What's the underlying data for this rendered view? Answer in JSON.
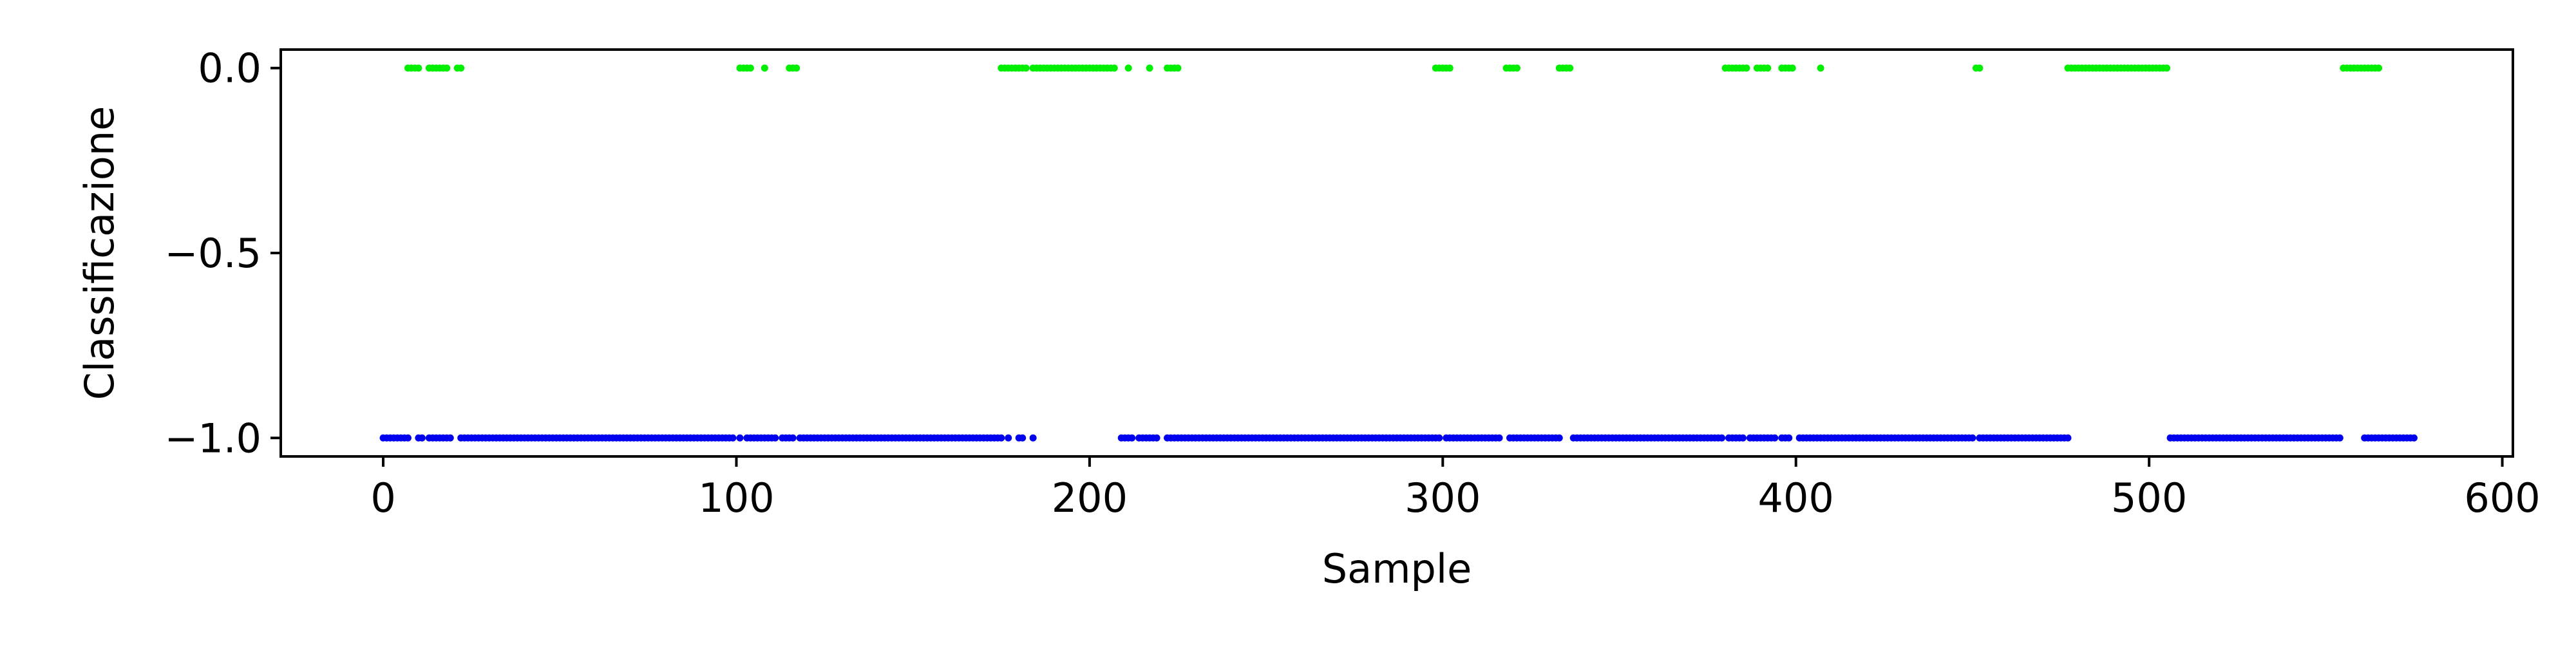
{
  "chart_data": {
    "type": "scatter",
    "title": "",
    "xlabel": "Sample",
    "ylabel": "Classificazione",
    "xlim": [
      -29,
      603
    ],
    "ylim": [
      -1.05,
      0.05
    ],
    "grid": false,
    "legend": "none",
    "x_ticks": [
      0,
      100,
      200,
      300,
      400,
      500,
      600
    ],
    "x_tick_labels": [
      "0",
      "100",
      "200",
      "300",
      "400",
      "500",
      "600"
    ],
    "y_ticks": [
      0.0,
      -0.5,
      -1.0
    ],
    "y_tick_labels": [
      "0.0",
      "−0.5",
      "−1.0"
    ],
    "series": [
      {
        "color": "#00ee00",
        "y_value": 0.0,
        "x_ranges": [
          [
            7,
            10
          ],
          [
            13,
            18
          ],
          [
            21,
            22
          ],
          [
            101,
            104
          ],
          [
            108,
            108
          ],
          [
            115,
            117
          ],
          [
            175,
            182
          ],
          [
            184,
            207
          ],
          [
            211,
            211
          ],
          [
            217,
            217
          ],
          [
            222,
            225
          ],
          [
            298,
            302
          ],
          [
            318,
            321
          ],
          [
            333,
            336
          ],
          [
            380,
            386
          ],
          [
            389,
            392
          ],
          [
            396,
            399
          ],
          [
            407,
            407
          ],
          [
            451,
            452
          ],
          [
            477,
            505
          ],
          [
            555,
            565
          ]
        ]
      },
      {
        "color": "#0000ee",
        "y_value": -1.0,
        "x_ranges": [
          [
            0,
            7
          ],
          [
            10,
            11
          ],
          [
            13,
            19
          ],
          [
            22,
            99
          ],
          [
            101,
            101
          ],
          [
            103,
            111
          ],
          [
            113,
            116
          ],
          [
            118,
            175
          ],
          [
            177,
            177
          ],
          [
            180,
            181
          ],
          [
            184,
            184
          ],
          [
            209,
            212
          ],
          [
            214,
            219
          ],
          [
            222,
            299
          ],
          [
            301,
            316
          ],
          [
            319,
            333
          ],
          [
            337,
            379
          ],
          [
            381,
            385
          ],
          [
            387,
            394
          ],
          [
            396,
            398
          ],
          [
            401,
            450
          ],
          [
            452,
            477
          ],
          [
            506,
            554
          ],
          [
            561,
            575
          ]
        ]
      }
    ]
  }
}
